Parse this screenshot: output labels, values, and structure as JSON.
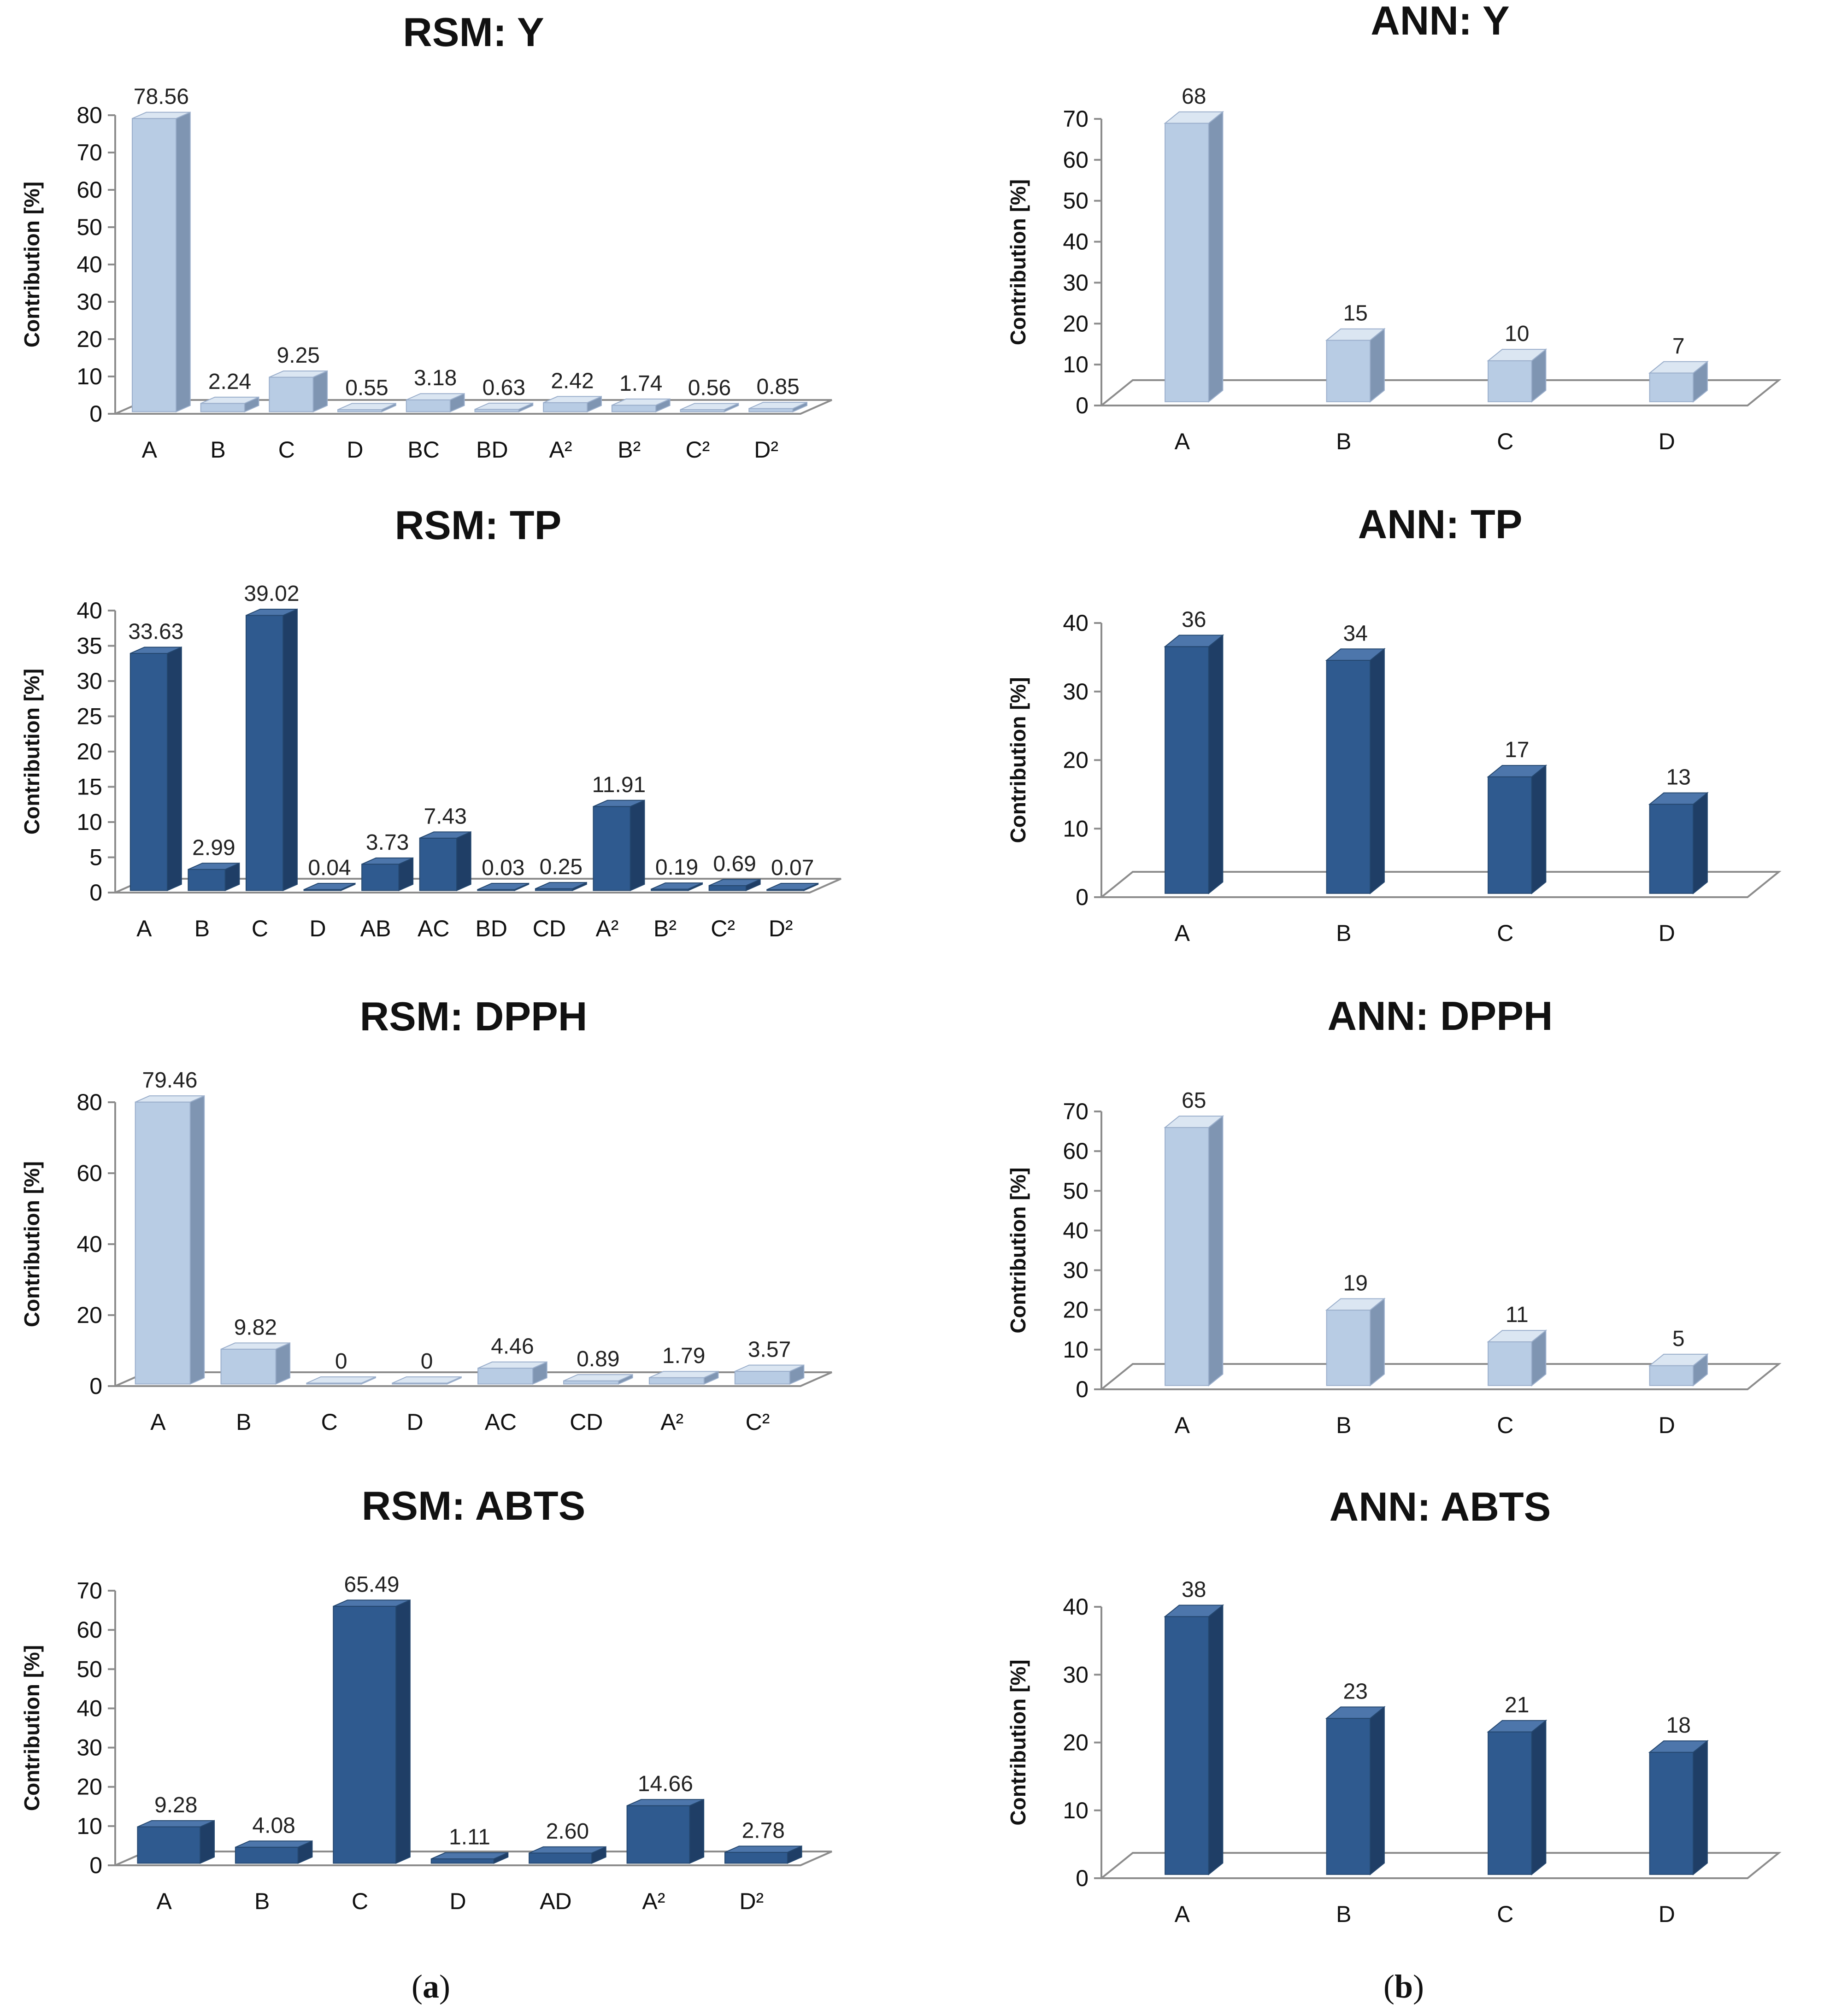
{
  "panel_labels": [
    {
      "open": "(",
      "letter": "a",
      "close": ")"
    },
    {
      "open": "(",
      "letter": "b",
      "close": ")"
    }
  ],
  "colors": {
    "light": "#b8cce4",
    "dark": "#2f5a8f",
    "axis": "#8c8c8c"
  },
  "chart_data": [
    {
      "type": "bar",
      "title": "RSM: Y",
      "ylabel": "Contribution [%]",
      "ylim": [
        0,
        80
      ],
      "yticks": [
        0,
        10,
        20,
        30,
        40,
        50,
        60,
        70,
        80
      ],
      "color": "light",
      "categories": [
        "A",
        "B",
        "C",
        "D",
        "BC",
        "BD",
        "A²",
        "B²",
        "C²",
        "D²"
      ],
      "values": [
        78.56,
        2.24,
        9.25,
        0.55,
        3.18,
        0.63,
        2.42,
        1.74,
        0.56,
        0.85
      ],
      "labels": [
        "78.56",
        "2.24",
        "9.25",
        "0.55",
        "3.18",
        "0.63",
        "2.42",
        "1.74",
        "0.56",
        "0.85"
      ]
    },
    {
      "type": "bar",
      "title": "ANN: Y",
      "ylabel": "Contribution [%]",
      "ylim": [
        0,
        70
      ],
      "yticks": [
        0,
        10,
        20,
        30,
        40,
        50,
        60,
        70
      ],
      "color": "light",
      "categories": [
        "A",
        "B",
        "C",
        "D"
      ],
      "values": [
        68,
        15,
        10,
        7
      ],
      "labels": [
        "68",
        "15",
        "10",
        "7"
      ]
    },
    {
      "type": "bar",
      "title": "RSM: TP",
      "ylabel": "Contribution [%]",
      "ylim": [
        0,
        40
      ],
      "yticks": [
        0,
        5,
        10,
        15,
        20,
        25,
        30,
        35,
        40
      ],
      "color": "dark",
      "categories": [
        "A",
        "B",
        "C",
        "D",
        "AB",
        "AC",
        "BD",
        "CD",
        "A²",
        "B²",
        "C²",
        "D²"
      ],
      "values": [
        33.63,
        2.99,
        39.02,
        0.04,
        3.73,
        7.43,
        0.03,
        0.25,
        11.91,
        0.19,
        0.69,
        0.07
      ],
      "labels": [
        "33.63",
        "2.99",
        "39.02",
        "0.04",
        "3.73",
        "7.43",
        "0.03",
        "0.25",
        "11.91",
        "0.19",
        "0.69",
        "0.07"
      ]
    },
    {
      "type": "bar",
      "title": "ANN: TP",
      "ylabel": "Contribution [%]",
      "ylim": [
        0,
        40
      ],
      "yticks": [
        0,
        10,
        20,
        30,
        40
      ],
      "color": "dark",
      "categories": [
        "A",
        "B",
        "C",
        "D"
      ],
      "values": [
        36,
        34,
        17,
        13
      ],
      "labels": [
        "36",
        "34",
        "17",
        "13"
      ]
    },
    {
      "type": "bar",
      "title": "RSM: DPPH",
      "ylabel": "Contribution [%]",
      "ylim": [
        0,
        80
      ],
      "yticks": [
        0,
        20,
        40,
        60,
        80
      ],
      "color": "light",
      "categories": [
        "A",
        "B",
        "C",
        "D",
        "AC",
        "CD",
        "A²",
        "C²"
      ],
      "values": [
        79.46,
        9.82,
        0,
        0,
        4.46,
        0.89,
        1.79,
        3.57
      ],
      "labels": [
        "79.46",
        "9.82",
        "0",
        "0",
        "4.46",
        "0.89",
        "1.79",
        "3.57"
      ]
    },
    {
      "type": "bar",
      "title": "ANN: DPPH",
      "ylabel": "Contribution [%]",
      "ylim": [
        0,
        70
      ],
      "yticks": [
        0,
        10,
        20,
        30,
        40,
        50,
        60,
        70
      ],
      "color": "light",
      "categories": [
        "A",
        "B",
        "C",
        "D"
      ],
      "values": [
        65,
        19,
        11,
        5
      ],
      "labels": [
        "65",
        "19",
        "11",
        "5"
      ]
    },
    {
      "type": "bar",
      "title": "RSM: ABTS",
      "ylabel": "Contribution [%]",
      "ylim": [
        0,
        70
      ],
      "yticks": [
        0,
        10,
        20,
        30,
        40,
        50,
        60,
        70
      ],
      "color": "dark",
      "categories": [
        "A",
        "B",
        "C",
        "D",
        "AD",
        "A²",
        "D²"
      ],
      "values": [
        9.28,
        4.08,
        65.49,
        1.11,
        2.6,
        14.66,
        2.78
      ],
      "labels": [
        "9.28",
        "4.08",
        "65.49",
        "1.11",
        "2.60",
        "14.66",
        "2.78"
      ]
    },
    {
      "type": "bar",
      "title": "ANN: ABTS",
      "ylabel": "Contribution [%]",
      "ylim": [
        0,
        40
      ],
      "yticks": [
        0,
        10,
        20,
        30,
        40
      ],
      "color": "dark",
      "categories": [
        "A",
        "B",
        "C",
        "D"
      ],
      "values": [
        38,
        23,
        21,
        18
      ],
      "labels": [
        "38",
        "23",
        "21",
        "18"
      ]
    }
  ]
}
